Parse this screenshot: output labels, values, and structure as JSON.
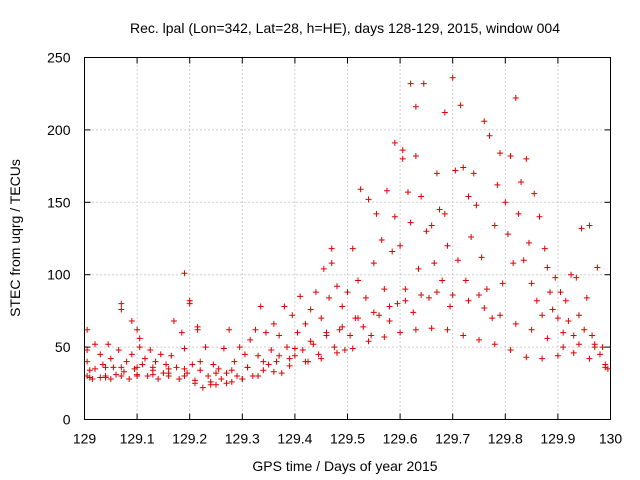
{
  "chart_data": {
    "type": "scatter",
    "title": "Rec. lpal (Lon=342, Lat=28, h=HE), days 128-129, 2015, window 004",
    "xlabel": "GPS time / Days of year 2015",
    "ylabel": "STEC from uqrg / TECUs",
    "xlim": [
      129,
      130
    ],
    "ylim": [
      0,
      250
    ],
    "xticks": [
      "129",
      "129.1",
      "129.2",
      "129.3",
      "129.4",
      "129.5",
      "129.6",
      "129.7",
      "129.8",
      "129.9",
      "130"
    ],
    "yticks": [
      "0",
      "50",
      "100",
      "150",
      "200",
      "250"
    ],
    "grid": true,
    "marker": "plus",
    "colors": {
      "points": "#dd0000",
      "grid": "#a0a0a0"
    },
    "series": [
      {
        "points": [
          [
            129.005,
            30
          ],
          [
            129.005,
            40
          ],
          [
            129.005,
            48
          ],
          [
            129.005,
            62
          ],
          [
            129.015,
            28
          ],
          [
            129.02,
            35
          ],
          [
            129.02,
            52
          ],
          [
            129.03,
            29
          ],
          [
            129.03,
            45
          ],
          [
            129.035,
            38
          ],
          [
            129.04,
            30
          ],
          [
            129.045,
            52
          ],
          [
            129.05,
            28
          ],
          [
            129.05,
            42
          ],
          [
            129.055,
            36
          ],
          [
            129.06,
            31
          ],
          [
            129.065,
            48
          ],
          [
            129.07,
            80
          ],
          [
            129.07,
            76
          ],
          [
            129.075,
            33
          ],
          [
            129.08,
            40
          ],
          [
            129.085,
            28
          ],
          [
            129.09,
            45
          ],
          [
            129.09,
            68
          ],
          [
            129.095,
            35
          ],
          [
            129.1,
            30
          ],
          [
            129.1,
            62
          ],
          [
            129.105,
            56
          ],
          [
            129.105,
            50
          ],
          [
            129.11,
            38
          ],
          [
            129.115,
            42
          ],
          [
            129.12,
            30
          ],
          [
            129.125,
            48
          ],
          [
            129.13,
            34
          ],
          [
            129.135,
            40
          ],
          [
            129.14,
            28
          ],
          [
            129.145,
            45
          ],
          [
            129.15,
            32
          ],
          [
            129.155,
            38
          ],
          [
            129.16,
            30
          ],
          [
            129.165,
            44
          ],
          [
            129.17,
            68
          ],
          [
            129.175,
            36
          ],
          [
            129.18,
            28
          ],
          [
            129.185,
            60
          ],
          [
            129.19,
            101
          ],
          [
            129.19,
            49
          ],
          [
            129.195,
            32
          ],
          [
            129.2,
            82
          ],
          [
            129.2,
            80
          ],
          [
            129.205,
            38
          ],
          [
            129.21,
            25
          ],
          [
            129.215,
            64
          ],
          [
            129.215,
            62
          ],
          [
            129.22,
            40
          ],
          [
            129.225,
            22
          ],
          [
            129.23,
            50
          ],
          [
            129.235,
            30
          ],
          [
            129.24,
            26
          ],
          [
            129.245,
            38
          ],
          [
            129.25,
            24
          ],
          [
            129.255,
            35
          ],
          [
            129.26,
            28
          ],
          [
            129.265,
            49
          ],
          [
            129.27,
            32
          ],
          [
            129.275,
            62
          ],
          [
            129.28,
            26
          ],
          [
            129.285,
            40
          ],
          [
            129.29,
            30
          ],
          [
            129.295,
            50
          ],
          [
            129.3,
            28
          ],
          [
            129.305,
            45
          ],
          [
            129.31,
            36
          ],
          [
            129.315,
            55
          ],
          [
            129.32,
            30
          ],
          [
            129.325,
            62
          ],
          [
            129.33,
            44
          ],
          [
            129.335,
            78
          ],
          [
            129.34,
            34
          ],
          [
            129.345,
            60
          ],
          [
            129.35,
            38
          ],
          [
            129.355,
            48
          ],
          [
            129.36,
            66
          ],
          [
            129.365,
            40
          ],
          [
            129.37,
            58
          ],
          [
            129.375,
            32
          ],
          [
            129.38,
            78
          ],
          [
            129.385,
            50
          ],
          [
            129.39,
            42
          ],
          [
            129.395,
            72
          ],
          [
            129.4,
            44
          ],
          [
            129.405,
            60
          ],
          [
            129.41,
            85
          ],
          [
            129.415,
            48
          ],
          [
            129.42,
            66
          ],
          [
            129.425,
            40
          ],
          [
            129.43,
            76
          ],
          [
            129.435,
            52
          ],
          [
            129.44,
            88
          ],
          [
            129.445,
            45
          ],
          [
            129.45,
            70
          ],
          [
            129.455,
            104
          ],
          [
            129.46,
            58
          ],
          [
            129.465,
            84
          ],
          [
            129.47,
            118
          ],
          [
            129.47,
            108
          ],
          [
            129.475,
            50
          ],
          [
            129.48,
            92
          ],
          [
            129.485,
            62
          ],
          [
            129.49,
            78
          ],
          [
            129.495,
            48
          ],
          [
            129.5,
            88
          ],
          [
            129.505,
            58
          ],
          [
            129.51,
            118
          ],
          [
            129.515,
            70
          ],
          [
            129.52,
            96
          ],
          [
            129.525,
            159
          ],
          [
            129.53,
            64
          ],
          [
            129.535,
            84
          ],
          [
            129.54,
            152
          ],
          [
            129.545,
            58
          ],
          [
            129.55,
            108
          ],
          [
            129.555,
            142
          ],
          [
            129.56,
            72
          ],
          [
            129.565,
            124
          ],
          [
            129.57,
            90
          ],
          [
            129.575,
            158
          ],
          [
            129.58,
            68
          ],
          [
            129.585,
            116
          ],
          [
            129.59,
            191
          ],
          [
            129.59,
            140
          ],
          [
            129.595,
            80
          ],
          [
            129.6,
            120
          ],
          [
            129.605,
            186
          ],
          [
            129.605,
            180
          ],
          [
            129.61,
            90
          ],
          [
            129.615,
            157
          ],
          [
            129.62,
            232
          ],
          [
            129.62,
            136
          ],
          [
            129.625,
            74
          ],
          [
            129.63,
            182
          ],
          [
            129.63,
            216
          ],
          [
            129.635,
            104
          ],
          [
            129.64,
            154
          ],
          [
            129.645,
            232
          ],
          [
            129.65,
            130
          ],
          [
            129.655,
            84
          ],
          [
            129.66,
            134
          ],
          [
            129.665,
            108
          ],
          [
            129.67,
            170
          ],
          [
            129.675,
            145
          ],
          [
            129.68,
            96
          ],
          [
            129.685,
            212
          ],
          [
            129.685,
            142
          ],
          [
            129.69,
            120
          ],
          [
            129.695,
            78
          ],
          [
            129.7,
            236
          ],
          [
            129.705,
            172
          ],
          [
            129.71,
            110
          ],
          [
            129.715,
            217
          ],
          [
            129.72,
            174
          ],
          [
            129.725,
            96
          ],
          [
            129.73,
            154
          ],
          [
            129.735,
            126
          ],
          [
            129.74,
            170
          ],
          [
            129.745,
            148
          ],
          [
            129.75,
            86
          ],
          [
            129.755,
            112
          ],
          [
            129.76,
            206
          ],
          [
            129.765,
            90
          ],
          [
            129.77,
            196
          ],
          [
            129.775,
            70
          ],
          [
            129.78,
            134
          ],
          [
            129.785,
            162
          ],
          [
            129.79,
            184
          ],
          [
            129.795,
            94
          ],
          [
            129.8,
            150
          ],
          [
            129.805,
            128
          ],
          [
            129.81,
            182
          ],
          [
            129.815,
            108
          ],
          [
            129.82,
            222
          ],
          [
            129.825,
            142
          ],
          [
            129.83,
            164
          ],
          [
            129.835,
            110
          ],
          [
            129.84,
            180
          ],
          [
            129.845,
            122
          ],
          [
            129.85,
            94
          ],
          [
            129.855,
            156
          ],
          [
            129.86,
            82
          ],
          [
            129.865,
            140
          ],
          [
            129.87,
            72
          ],
          [
            129.875,
            118
          ],
          [
            129.88,
            105
          ],
          [
            129.885,
            88
          ],
          [
            129.89,
            76
          ],
          [
            129.895,
            98
          ],
          [
            129.9,
            70
          ],
          [
            129.905,
            88
          ],
          [
            129.91,
            60
          ],
          [
            129.915,
            82
          ],
          [
            129.92,
            68
          ],
          [
            129.925,
            100
          ],
          [
            129.93,
            58
          ],
          [
            129.935,
            98
          ],
          [
            129.94,
            72
          ],
          [
            129.945,
            132
          ],
          [
            129.95,
            62
          ],
          [
            129.955,
            84
          ],
          [
            129.96,
            134
          ],
          [
            129.965,
            58
          ],
          [
            129.97,
            52
          ],
          [
            129.975,
            105
          ],
          [
            129.98,
            45
          ],
          [
            129.985,
            50
          ],
          [
            129.99,
            38
          ],
          [
            129.995,
            35
          ],
          [
            129.01,
            29
          ],
          [
            129.04,
            29
          ],
          [
            129.07,
            30
          ],
          [
            129.1,
            31
          ],
          [
            129.13,
            31
          ],
          [
            129.16,
            32
          ],
          [
            129.19,
            30
          ],
          [
            129.21,
            27
          ],
          [
            129.24,
            24
          ],
          [
            129.27,
            25
          ],
          [
            129.3,
            28
          ],
          [
            129.33,
            30
          ],
          [
            129.36,
            33
          ],
          [
            129.39,
            37
          ],
          [
            129.42,
            40
          ],
          [
            129.45,
            42
          ],
          [
            129.48,
            46
          ],
          [
            129.51,
            49
          ],
          [
            129.54,
            54
          ],
          [
            129.57,
            57
          ],
          [
            129.6,
            60
          ],
          [
            129.63,
            62
          ],
          [
            129.66,
            63
          ],
          [
            129.69,
            62
          ],
          [
            129.72,
            58
          ],
          [
            129.75,
            55
          ],
          [
            129.78,
            52
          ],
          [
            129.81,
            48
          ],
          [
            129.84,
            43
          ],
          [
            129.87,
            42
          ],
          [
            129.9,
            44
          ],
          [
            129.93,
            46
          ],
          [
            129.96,
            42
          ],
          [
            129.99,
            36
          ],
          [
            129.01,
            34
          ],
          [
            129.04,
            36
          ],
          [
            129.07,
            36
          ],
          [
            129.1,
            36
          ],
          [
            129.13,
            36
          ],
          [
            129.16,
            35
          ],
          [
            129.19,
            35
          ],
          [
            129.22,
            34
          ],
          [
            129.25,
            32
          ],
          [
            129.28,
            34
          ],
          [
            129.31,
            36
          ],
          [
            129.34,
            40
          ],
          [
            129.37,
            44
          ],
          [
            129.4,
            49
          ],
          [
            129.43,
            54
          ],
          [
            129.46,
            60
          ],
          [
            129.49,
            64
          ],
          [
            129.52,
            70
          ],
          [
            129.55,
            74
          ],
          [
            129.58,
            78
          ],
          [
            129.61,
            82
          ],
          [
            129.64,
            86
          ],
          [
            129.67,
            88
          ],
          [
            129.7,
            86
          ],
          [
            129.73,
            82
          ],
          [
            129.76,
            77
          ],
          [
            129.79,
            72
          ],
          [
            129.82,
            66
          ],
          [
            129.85,
            62
          ],
          [
            129.88,
            56
          ],
          [
            129.91,
            50
          ],
          [
            129.94,
            52
          ],
          [
            129.97,
            50
          ]
        ]
      }
    ]
  }
}
